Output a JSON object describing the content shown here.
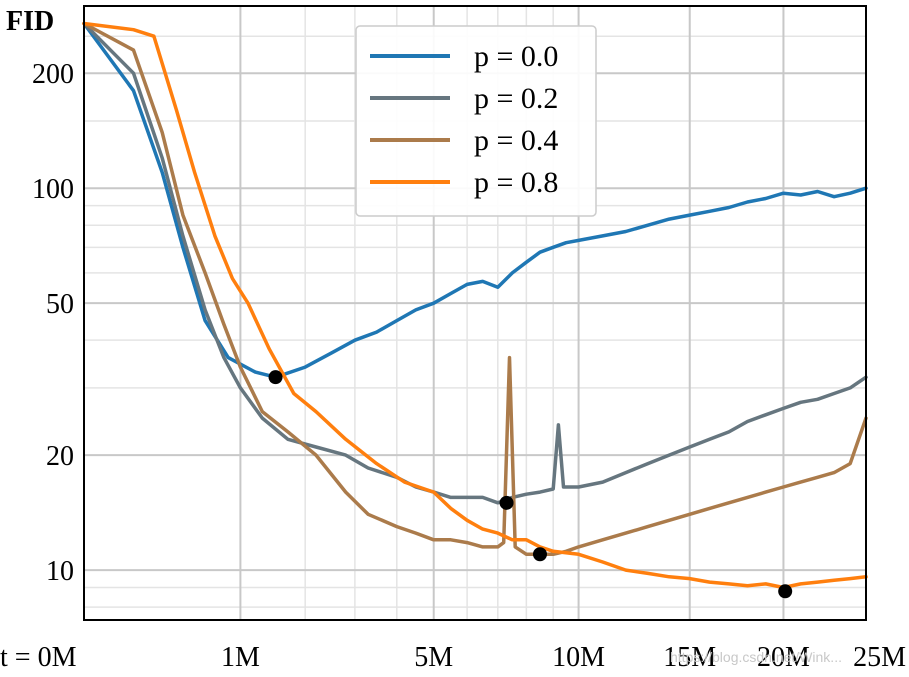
{
  "chart_data": {
    "type": "line",
    "title": "",
    "ylabel": "FID",
    "xlabel": "",
    "x_scale": "sqrt",
    "y_scale": "log",
    "xlim": [
      0,
      25
    ],
    "ylim": [
      7.4,
      300
    ],
    "x_ticks": [
      {
        "value": 0,
        "label": "t = 0M"
      },
      {
        "value": 1,
        "label": "1M"
      },
      {
        "value": 5,
        "label": "5M"
      },
      {
        "value": 10,
        "label": "10M"
      },
      {
        "value": 15,
        "label": "15M"
      },
      {
        "value": 20,
        "label": "20M"
      },
      {
        "value": 25,
        "label": "25M"
      }
    ],
    "y_ticks": [
      {
        "value": 10,
        "label": "10"
      },
      {
        "value": 20,
        "label": "20"
      },
      {
        "value": 50,
        "label": "50"
      },
      {
        "value": 100,
        "label": "100"
      },
      {
        "value": 200,
        "label": "200"
      }
    ],
    "grid": true,
    "legend_position": "top-center",
    "x_unit": "M",
    "series": [
      {
        "name": "p = 0.0",
        "color": "#1f77b4",
        "points": [
          [
            0,
            270
          ],
          [
            0.1,
            180
          ],
          [
            0.25,
            110
          ],
          [
            0.4,
            70
          ],
          [
            0.6,
            45
          ],
          [
            0.85,
            36
          ],
          [
            1.2,
            33
          ],
          [
            1.5,
            32
          ],
          [
            2.0,
            34
          ],
          [
            2.5,
            37
          ],
          [
            3.0,
            40
          ],
          [
            3.5,
            42
          ],
          [
            4.0,
            45
          ],
          [
            4.5,
            48
          ],
          [
            5.0,
            50
          ],
          [
            5.5,
            53
          ],
          [
            6.0,
            56
          ],
          [
            6.5,
            57
          ],
          [
            7.0,
            55
          ],
          [
            7.5,
            60
          ],
          [
            8.0,
            64
          ],
          [
            8.5,
            68
          ],
          [
            9.0,
            70
          ],
          [
            9.5,
            72
          ],
          [
            10.0,
            73
          ],
          [
            11,
            75
          ],
          [
            12,
            77
          ],
          [
            13,
            80
          ],
          [
            14,
            83
          ],
          [
            15,
            85
          ],
          [
            16,
            87
          ],
          [
            17,
            89
          ],
          [
            18,
            92
          ],
          [
            19,
            94
          ],
          [
            20,
            97
          ],
          [
            21,
            96
          ],
          [
            22,
            98
          ],
          [
            23,
            95
          ],
          [
            24,
            97
          ],
          [
            25,
            100
          ]
        ]
      },
      {
        "name": "p = 0.2",
        "color": "#66767f",
        "points": [
          [
            0,
            270
          ],
          [
            0.1,
            200
          ],
          [
            0.25,
            120
          ],
          [
            0.4,
            75
          ],
          [
            0.6,
            48
          ],
          [
            0.8,
            36
          ],
          [
            1.0,
            30
          ],
          [
            1.3,
            25
          ],
          [
            1.7,
            22
          ],
          [
            2.2,
            21
          ],
          [
            2.8,
            20
          ],
          [
            3.3,
            18.5
          ],
          [
            4.0,
            17.5
          ],
          [
            4.5,
            16.5
          ],
          [
            5.0,
            16
          ],
          [
            5.5,
            15.5
          ],
          [
            6.0,
            15.5
          ],
          [
            6.5,
            15.5
          ],
          [
            7.0,
            15
          ],
          [
            7.5,
            15.5
          ],
          [
            8.0,
            15.8
          ],
          [
            8.5,
            16
          ],
          [
            9.0,
            16.3
          ],
          [
            9.2,
            24
          ],
          [
            9.4,
            16.5
          ],
          [
            10,
            16.5
          ],
          [
            11,
            17
          ],
          [
            12,
            18
          ],
          [
            13,
            19
          ],
          [
            14,
            20
          ],
          [
            15,
            21
          ],
          [
            16,
            22
          ],
          [
            17,
            23
          ],
          [
            18,
            24.5
          ],
          [
            19,
            25.5
          ],
          [
            20,
            26.5
          ],
          [
            21,
            27.5
          ],
          [
            22,
            28
          ],
          [
            23,
            29
          ],
          [
            24,
            30
          ],
          [
            25,
            32
          ]
        ]
      },
      {
        "name": "p = 0.4",
        "color": "#ab7b4b",
        "points": [
          [
            0,
            270
          ],
          [
            0.1,
            230
          ],
          [
            0.25,
            140
          ],
          [
            0.4,
            85
          ],
          [
            0.6,
            60
          ],
          [
            0.8,
            44
          ],
          [
            1.0,
            34
          ],
          [
            1.3,
            26
          ],
          [
            1.7,
            23
          ],
          [
            2.2,
            20
          ],
          [
            2.8,
            16
          ],
          [
            3.3,
            14
          ],
          [
            4.0,
            13
          ],
          [
            4.5,
            12.5
          ],
          [
            5.0,
            12
          ],
          [
            5.5,
            12
          ],
          [
            6.0,
            11.8
          ],
          [
            6.5,
            11.5
          ],
          [
            7.0,
            11.5
          ],
          [
            7.2,
            11.8
          ],
          [
            7.4,
            36
          ],
          [
            7.6,
            11.5
          ],
          [
            8.0,
            11
          ],
          [
            8.5,
            11
          ],
          [
            9.0,
            11
          ],
          [
            9.5,
            11.2
          ],
          [
            10,
            11.5
          ],
          [
            11,
            12
          ],
          [
            12,
            12.5
          ],
          [
            13,
            13
          ],
          [
            14,
            13.5
          ],
          [
            15,
            14
          ],
          [
            16,
            14.5
          ],
          [
            17,
            15
          ],
          [
            18,
            15.5
          ],
          [
            19,
            16
          ],
          [
            20,
            16.5
          ],
          [
            21,
            17
          ],
          [
            22,
            17.5
          ],
          [
            23,
            18
          ],
          [
            24,
            19
          ],
          [
            25,
            25
          ]
        ]
      },
      {
        "name": "p = 0.8",
        "color": "#ff7f0e",
        "points": [
          [
            0,
            270
          ],
          [
            0.1,
            260
          ],
          [
            0.2,
            250
          ],
          [
            0.35,
            160
          ],
          [
            0.5,
            110
          ],
          [
            0.7,
            75
          ],
          [
            0.9,
            58
          ],
          [
            1.1,
            50
          ],
          [
            1.4,
            38
          ],
          [
            1.8,
            29
          ],
          [
            2.2,
            26
          ],
          [
            2.8,
            22
          ],
          [
            3.5,
            19
          ],
          [
            4.2,
            17
          ],
          [
            5.0,
            16
          ],
          [
            5.5,
            14.5
          ],
          [
            6.0,
            13.5
          ],
          [
            6.5,
            12.8
          ],
          [
            7.0,
            12.5
          ],
          [
            7.5,
            12
          ],
          [
            8.0,
            12
          ],
          [
            8.5,
            11.5
          ],
          [
            9.0,
            11.2
          ],
          [
            10,
            11
          ],
          [
            11,
            10.5
          ],
          [
            12,
            10
          ],
          [
            13,
            9.8
          ],
          [
            14,
            9.6
          ],
          [
            15,
            9.5
          ],
          [
            16,
            9.3
          ],
          [
            17,
            9.2
          ],
          [
            18,
            9.1
          ],
          [
            19,
            9.2
          ],
          [
            20,
            9.0
          ],
          [
            21,
            9.2
          ],
          [
            22,
            9.3
          ],
          [
            23,
            9.4
          ],
          [
            24,
            9.5
          ],
          [
            25,
            9.6
          ]
        ]
      }
    ],
    "markers": [
      {
        "series": "p = 0.0",
        "x": 1.5,
        "y": 32
      },
      {
        "series": "p = 0.4",
        "x": 8.5,
        "y": 11
      },
      {
        "series": "p = 0.2",
        "x": 7.3,
        "y": 15
      },
      {
        "series": "p = 0.8",
        "x": 20.1,
        "y": 8.8
      }
    ]
  },
  "watermark": "https://blog.csdn.net/Wink..."
}
